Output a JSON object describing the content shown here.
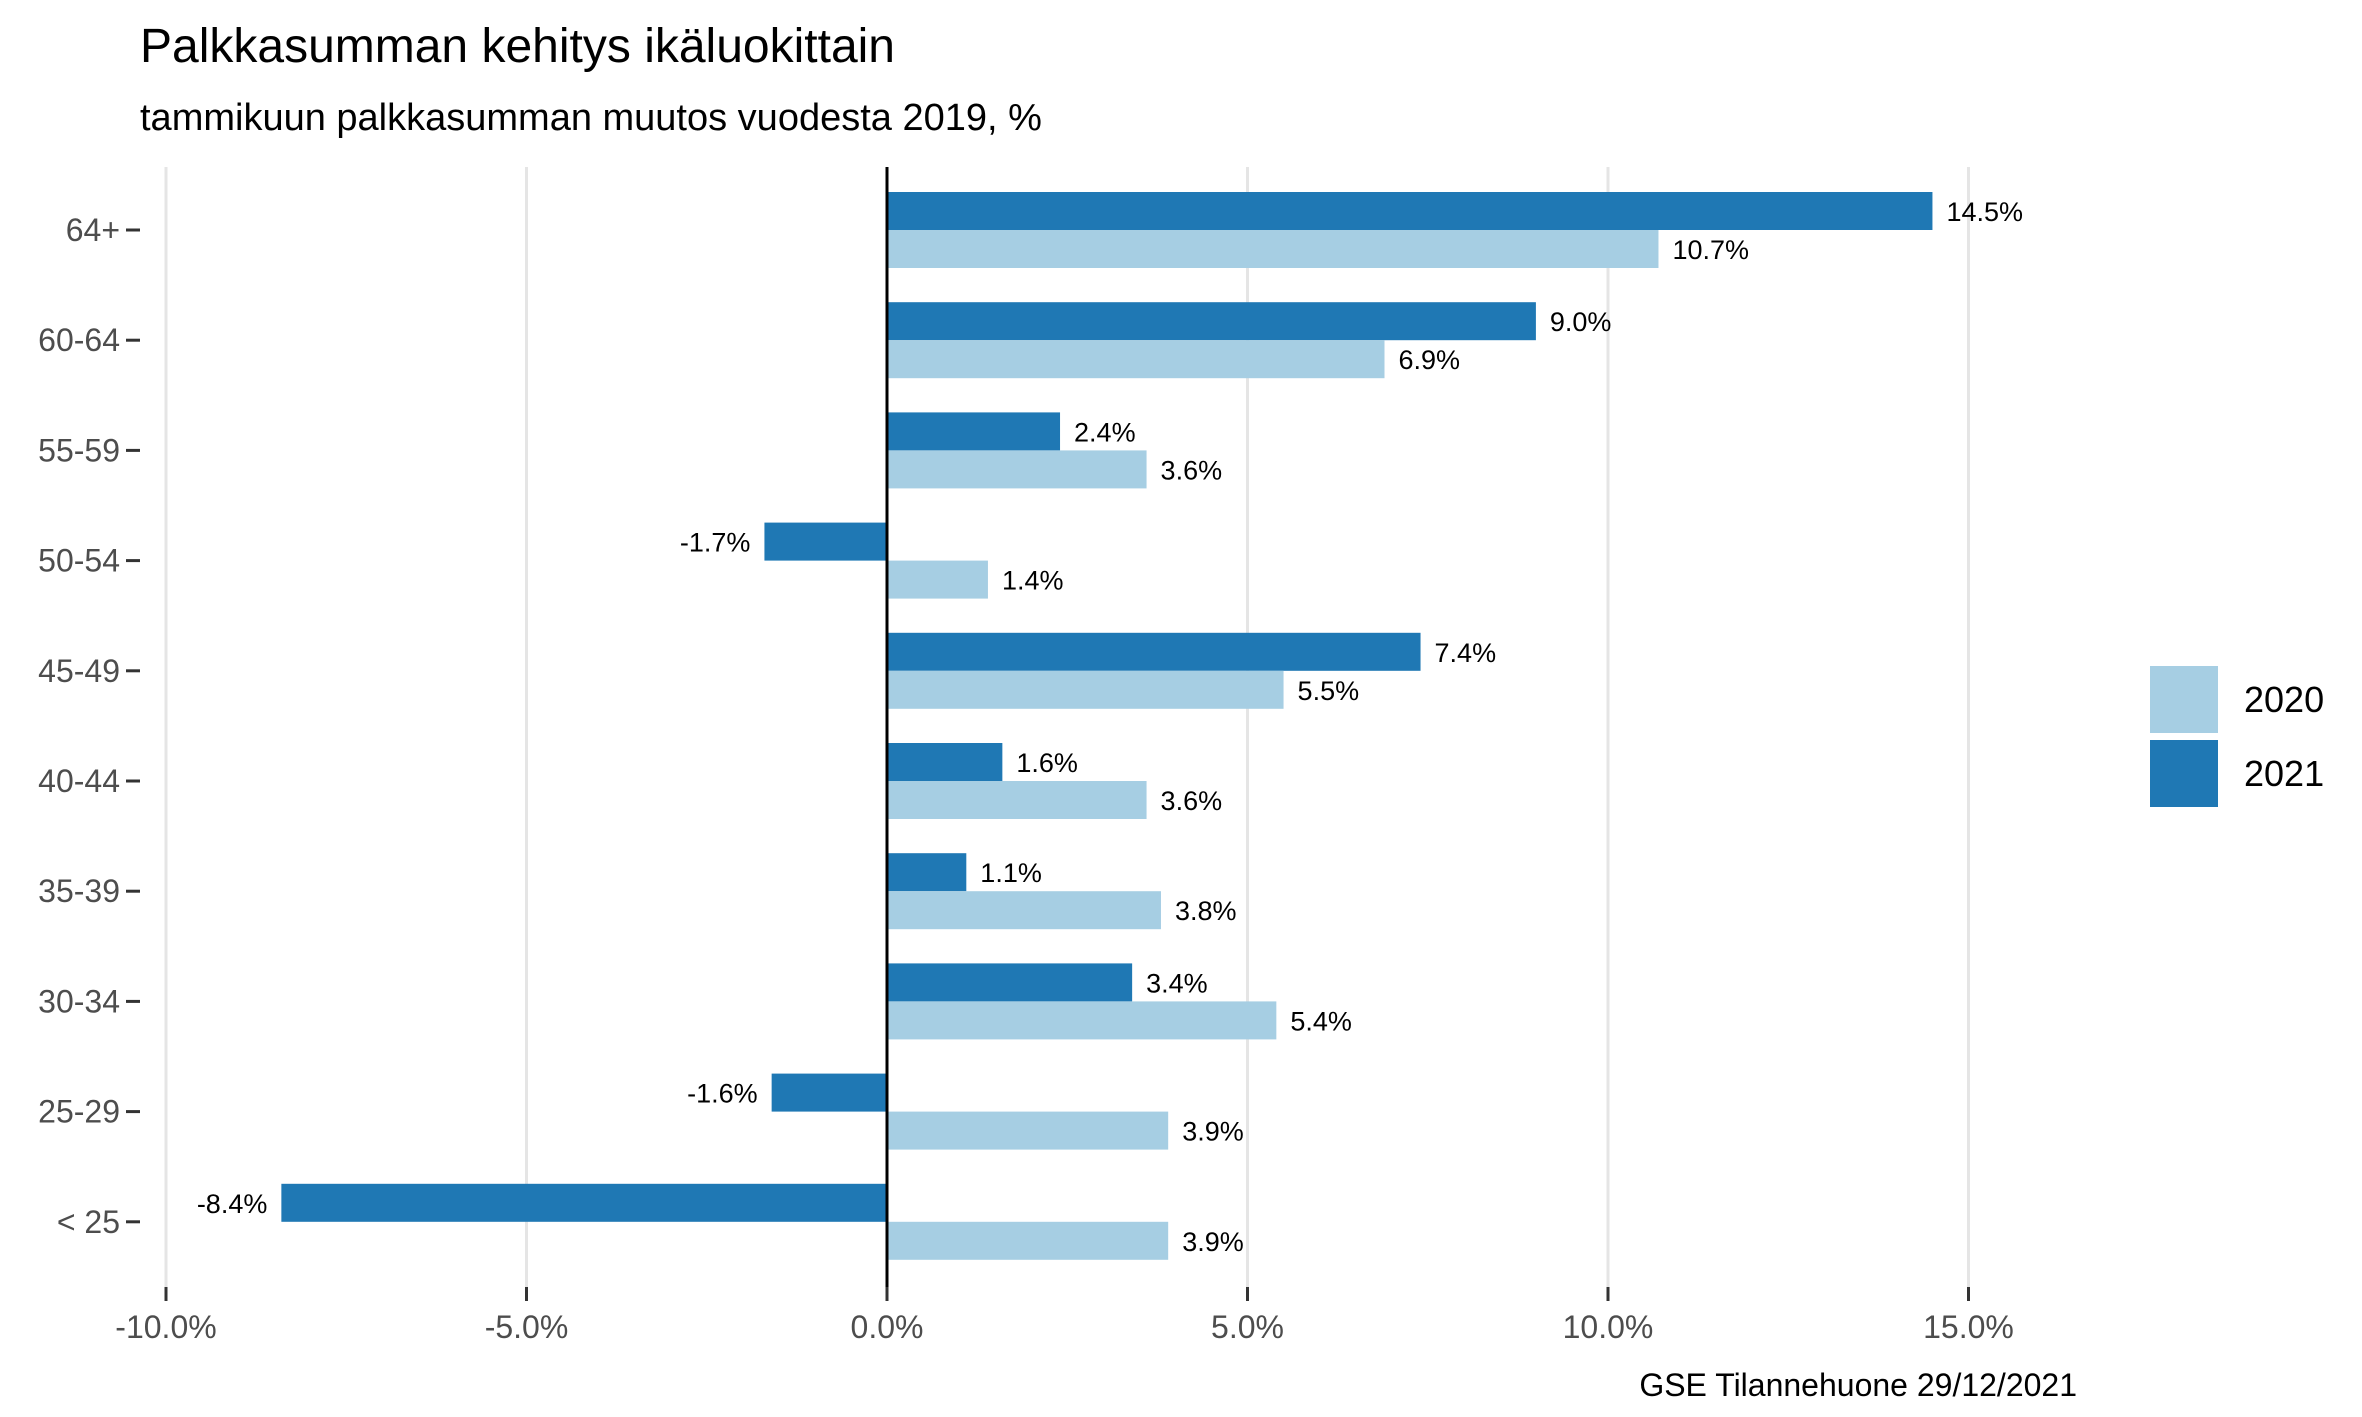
{
  "chart_data": {
    "type": "bar",
    "orientation": "horizontal",
    "title": "Palkkasumman kehitys ikäluokittain",
    "subtitle": "tammikuun palkkasumman muutos vuodesta 2019, %",
    "caption": "GSE Tilannehuone 29/12/2021",
    "xlabel": "",
    "ylabel": "",
    "xlim": [
      -10.5,
      18.5
    ],
    "xticks": [
      -10,
      -5,
      0,
      5,
      10,
      15
    ],
    "xtick_labels": [
      "-10.0%",
      "-5.0%",
      "0.0%",
      "5.0%",
      "10.0%",
      "15.0%"
    ],
    "grid": "vertical major",
    "legend_position": "right",
    "categories": [
      "64+",
      "60-64",
      "55-59",
      "50-54",
      "45-49",
      "40-44",
      "35-39",
      "30-34",
      "25-29",
      "< 25"
    ],
    "series": [
      {
        "name": "2020",
        "color": "#a6cee3",
        "values": [
          10.7,
          6.9,
          3.6,
          1.4,
          5.5,
          3.6,
          3.8,
          5.4,
          3.9,
          3.9
        ],
        "labels": [
          "10.7%",
          "6.9%",
          "3.6%",
          "1.4%",
          "5.5%",
          "3.6%",
          "3.8%",
          "5.4%",
          "3.9%",
          "3.9%"
        ]
      },
      {
        "name": "2021",
        "color": "#1f78b4",
        "values": [
          14.5,
          9.0,
          2.4,
          -1.7,
          7.4,
          1.6,
          1.1,
          3.4,
          -1.6,
          -8.4
        ],
        "labels": [
          "14.5%",
          "9.0%",
          "2.4%",
          "-1.7%",
          "7.4%",
          "1.6%",
          "1.1%",
          "3.4%",
          "-1.6%",
          "-8.4%"
        ]
      }
    ]
  }
}
